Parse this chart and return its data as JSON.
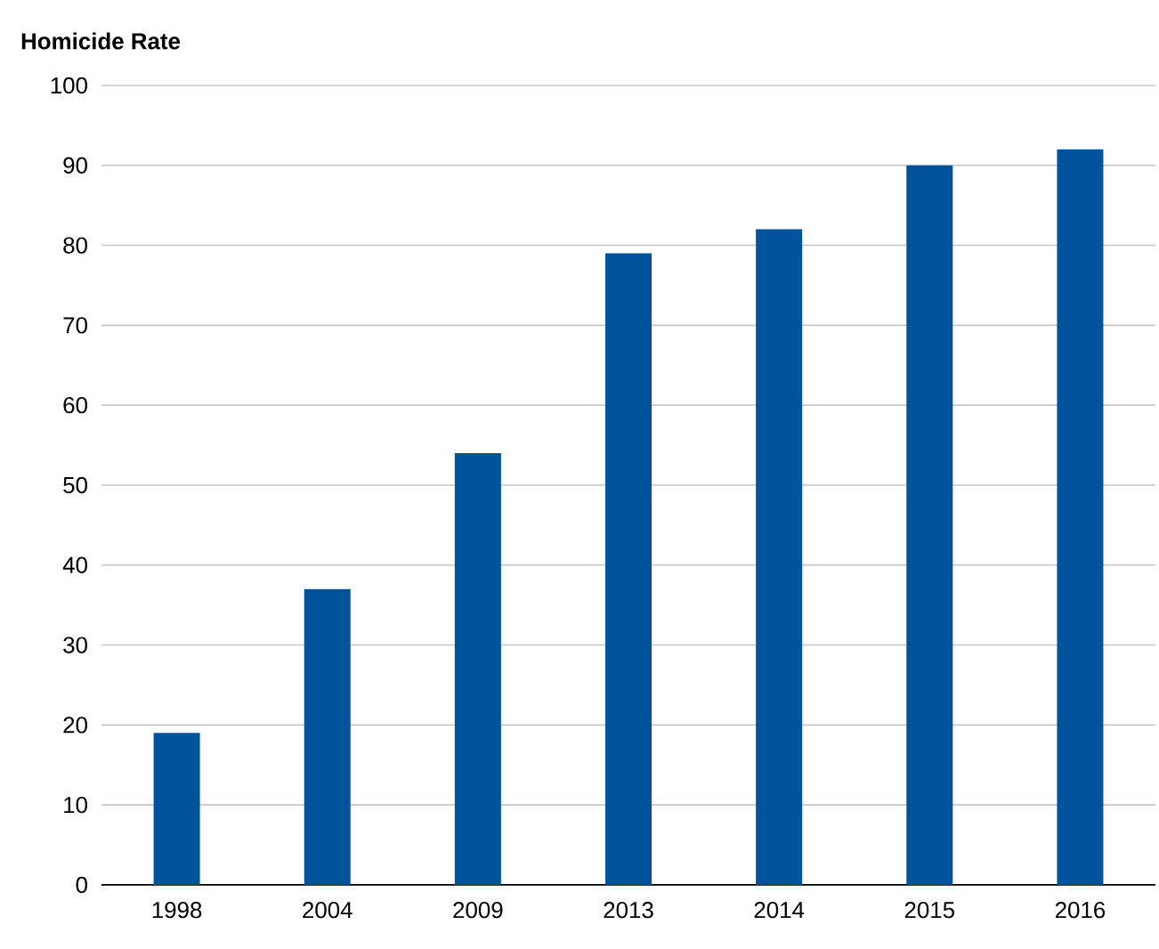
{
  "chart_data": {
    "type": "bar",
    "title": "Homicide Rate",
    "categories": [
      "1998",
      "2004",
      "2009",
      "2013",
      "2014",
      "2015",
      "2016"
    ],
    "values": [
      19,
      37,
      54,
      79,
      82,
      90,
      92
    ],
    "color": "#00539b",
    "ylim": [
      0,
      100
    ],
    "yticks": [
      0,
      10,
      20,
      30,
      40,
      50,
      60,
      70,
      80,
      90,
      100
    ],
    "grid": "y"
  }
}
